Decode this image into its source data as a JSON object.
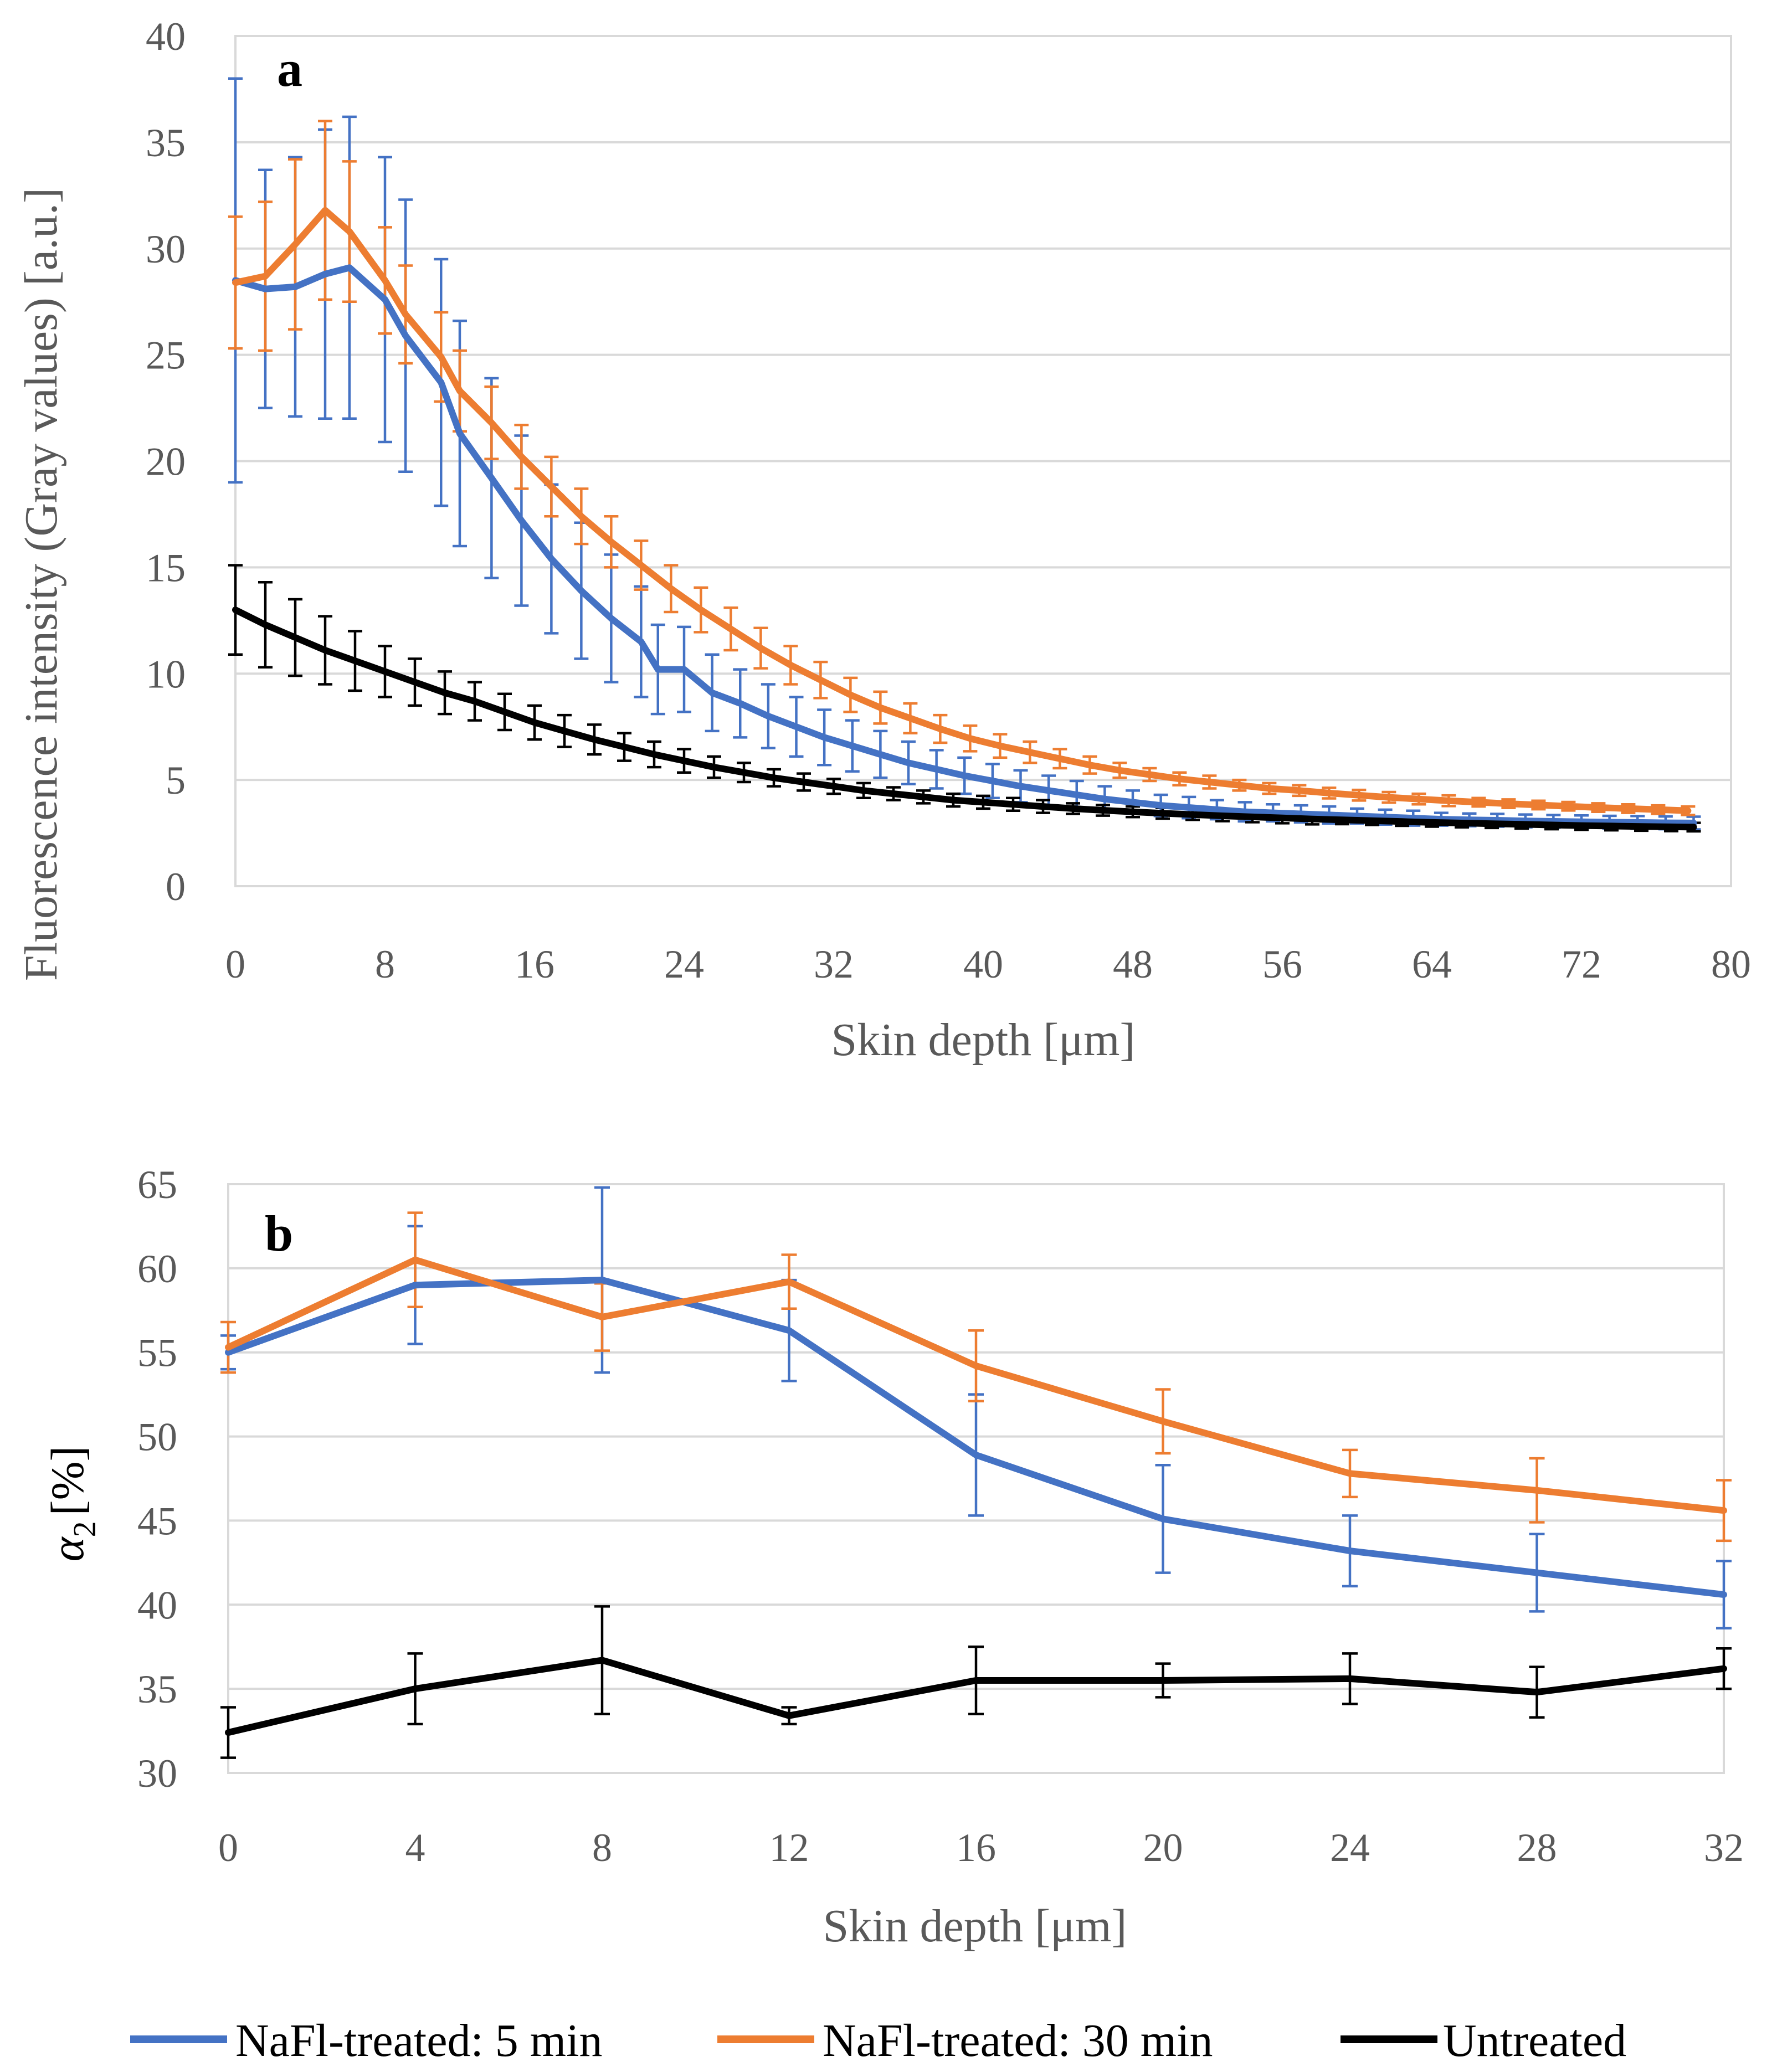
{
  "chart_data": [
    {
      "panel": "a",
      "type": "line",
      "xlabel": "Skin depth [μm]",
      "ylabel": "Fluorescence intensity (Gray values) [a.u.]",
      "xlim": [
        0,
        80
      ],
      "ylim": [
        0,
        40
      ],
      "xticks": [
        0,
        8,
        16,
        24,
        32,
        40,
        48,
        56,
        64,
        72,
        80
      ],
      "yticks": [
        0,
        5,
        10,
        15,
        20,
        25,
        30,
        35,
        40
      ],
      "grid": true,
      "series": [
        {
          "name": "NaFl-treated: 5 min",
          "color": "#4472c4",
          "x": [
            0,
            1.6,
            3.2,
            4.8,
            6.1,
            8,
            9.1,
            11,
            12,
            13.7,
            15.3,
            16.9,
            18.5,
            20.1,
            21.7,
            22.6,
            24,
            25.5,
            27,
            28.5,
            30,
            31.5,
            33,
            34.5,
            36,
            37.5,
            39,
            40.5,
            42,
            43.5,
            45,
            46.5,
            48,
            49.5,
            51,
            52.5,
            54,
            55.5,
            57,
            58.5,
            60,
            61.5,
            63,
            64.5,
            66,
            67.5,
            69,
            70.5,
            72,
            73.5,
            75,
            76.5,
            78
          ],
          "y": [
            28.5,
            28.1,
            28.2,
            28.8,
            29.1,
            27.6,
            25.9,
            23.7,
            21.3,
            19.2,
            17.2,
            15.4,
            13.9,
            12.6,
            11.5,
            10.2,
            10.2,
            9.1,
            8.6,
            8.0,
            7.5,
            7.0,
            6.6,
            6.2,
            5.8,
            5.5,
            5.2,
            4.95,
            4.7,
            4.5,
            4.3,
            4.1,
            3.95,
            3.8,
            3.7,
            3.6,
            3.5,
            3.45,
            3.4,
            3.35,
            3.3,
            3.25,
            3.2,
            3.15,
            3.12,
            3.1,
            3.07,
            3.05,
            3.03,
            3.01,
            3.0,
            2.98,
            2.97
          ],
          "err": [
            9.5,
            5.6,
            6.1,
            6.8,
            7.1,
            6.7,
            6.4,
            5.8,
            5.3,
            4.7,
            4.0,
            3.5,
            3.2,
            3.0,
            2.6,
            2.1,
            2.0,
            1.8,
            1.6,
            1.5,
            1.4,
            1.3,
            1.2,
            1.1,
            1.0,
            0.9,
            0.85,
            0.8,
            0.75,
            0.7,
            0.65,
            0.6,
            0.55,
            0.5,
            0.5,
            0.45,
            0.45,
            0.4,
            0.4,
            0.4,
            0.35,
            0.35,
            0.35,
            0.3,
            0.3,
            0.3,
            0.3,
            0.3,
            0.3,
            0.3,
            0.3,
            0.3,
            0.3
          ]
        },
        {
          "name": "NaFl-treated: 30 min",
          "color": "#ed7d31",
          "x": [
            0,
            1.6,
            3.2,
            4.8,
            6.1,
            8,
            9.1,
            11,
            12,
            13.7,
            15.3,
            16.9,
            18.5,
            20.1,
            21.7,
            23.3,
            24.9,
            26.5,
            28.1,
            29.7,
            31.3,
            32.9,
            34.5,
            36.1,
            37.7,
            39.3,
            40.9,
            42.5,
            44.1,
            45.7,
            47.3,
            48.9,
            50.5,
            52.1,
            53.7,
            55.3,
            56.9,
            58.5,
            60.1,
            61.7,
            63.3,
            64.9,
            66.5,
            68.1,
            69.7,
            71.3,
            72.9,
            74.5,
            76.1,
            77.7
          ],
          "y": [
            28.4,
            28.7,
            30.2,
            31.8,
            30.8,
            28.5,
            26.9,
            24.9,
            23.3,
            21.8,
            20.2,
            18.8,
            17.4,
            16.2,
            15.1,
            14.0,
            13.0,
            12.1,
            11.2,
            10.4,
            9.7,
            9.0,
            8.4,
            7.9,
            7.4,
            6.95,
            6.6,
            6.3,
            6.0,
            5.7,
            5.45,
            5.25,
            5.05,
            4.9,
            4.75,
            4.6,
            4.5,
            4.38,
            4.28,
            4.18,
            4.1,
            4.02,
            3.95,
            3.88,
            3.82,
            3.76,
            3.7,
            3.65,
            3.6,
            3.55
          ],
          "err": [
            3.1,
            3.5,
            4.0,
            4.2,
            3.3,
            2.5,
            2.3,
            2.1,
            1.9,
            1.7,
            1.5,
            1.4,
            1.3,
            1.2,
            1.15,
            1.1,
            1.05,
            1.0,
            0.95,
            0.9,
            0.85,
            0.8,
            0.75,
            0.7,
            0.65,
            0.6,
            0.55,
            0.5,
            0.45,
            0.4,
            0.35,
            0.3,
            0.3,
            0.3,
            0.25,
            0.25,
            0.25,
            0.25,
            0.25,
            0.25,
            0.25,
            0.25,
            0.2,
            0.2,
            0.2,
            0.2,
            0.2,
            0.2,
            0.2,
            0.2
          ]
        },
        {
          "name": "Untreated",
          "color": "#000000",
          "x": [
            0,
            1.6,
            3.2,
            4.8,
            6.4,
            8,
            9.6,
            11.2,
            12.8,
            14.4,
            16,
            17.6,
            19.2,
            20.8,
            22.4,
            24,
            25.6,
            27.2,
            28.8,
            30.4,
            32,
            33.6,
            35.2,
            36.8,
            38.4,
            40,
            41.6,
            43.2,
            44.8,
            46.4,
            48,
            49.6,
            51.2,
            52.8,
            54.4,
            56,
            57.6,
            59.2,
            60.8,
            62.4,
            64,
            65.6,
            67.2,
            68.8,
            70.4,
            72,
            73.6,
            75.2,
            76.8,
            78
          ],
          "y": [
            13.0,
            12.3,
            11.7,
            11.1,
            10.6,
            10.1,
            9.6,
            9.1,
            8.7,
            8.2,
            7.7,
            7.3,
            6.9,
            6.55,
            6.2,
            5.9,
            5.6,
            5.35,
            5.1,
            4.9,
            4.7,
            4.5,
            4.35,
            4.2,
            4.05,
            3.95,
            3.85,
            3.75,
            3.65,
            3.57,
            3.5,
            3.43,
            3.37,
            3.31,
            3.26,
            3.21,
            3.16,
            3.12,
            3.08,
            3.04,
            3.0,
            2.97,
            2.94,
            2.91,
            2.88,
            2.85,
            2.83,
            2.81,
            2.79,
            2.78
          ],
          "err": [
            2.1,
            2.0,
            1.8,
            1.6,
            1.4,
            1.2,
            1.1,
            1.0,
            0.9,
            0.85,
            0.8,
            0.75,
            0.7,
            0.65,
            0.6,
            0.55,
            0.5,
            0.45,
            0.4,
            0.4,
            0.35,
            0.35,
            0.3,
            0.3,
            0.3,
            0.3,
            0.3,
            0.3,
            0.25,
            0.25,
            0.25,
            0.25,
            0.25,
            0.25,
            0.25,
            0.25,
            0.25,
            0.2,
            0.2,
            0.2,
            0.2,
            0.2,
            0.2,
            0.2,
            0.2,
            0.2,
            0.2,
            0.2,
            0.2,
            0.2
          ]
        }
      ]
    },
    {
      "panel": "b",
      "type": "line",
      "xlabel": "Skin depth [μm]",
      "ylabel_symbol": "α",
      "ylabel_subscript": "2",
      "ylabel_unit": "[%]",
      "xlim": [
        0,
        32
      ],
      "ylim": [
        30,
        65
      ],
      "xticks": [
        0,
        4,
        8,
        12,
        16,
        20,
        24,
        28,
        32
      ],
      "yticks": [
        30,
        35,
        40,
        45,
        50,
        55,
        60,
        65
      ],
      "grid": true,
      "series": [
        {
          "name": "NaFl-treated: 5 min",
          "color": "#4472c4",
          "x": [
            0,
            4,
            8,
            12,
            16,
            20,
            24,
            28,
            32
          ],
          "y": [
            55.0,
            59.0,
            59.3,
            56.3,
            48.9,
            45.1,
            43.2,
            41.9,
            40.6
          ],
          "err": [
            1.0,
            3.5,
            5.5,
            3.0,
            3.6,
            3.2,
            2.1,
            2.3,
            2.0
          ]
        },
        {
          "name": "NaFl-treated: 30 min",
          "color": "#ed7d31",
          "x": [
            0,
            4,
            8,
            12,
            16,
            20,
            24,
            28,
            32
          ],
          "y": [
            55.3,
            60.5,
            57.1,
            59.2,
            54.2,
            50.9,
            47.8,
            46.8,
            45.6
          ],
          "err": [
            1.5,
            2.8,
            2.0,
            1.6,
            2.1,
            1.9,
            1.4,
            1.9,
            1.8
          ]
        },
        {
          "name": "Untreated",
          "color": "#000000",
          "x": [
            0,
            4,
            8,
            12,
            16,
            20,
            24,
            28,
            32
          ],
          "y": [
            32.4,
            35.0,
            36.7,
            33.4,
            35.5,
            35.5,
            35.6,
            34.8,
            36.2
          ],
          "err": [
            1.5,
            2.1,
            3.2,
            0.5,
            2.0,
            1.0,
            1.5,
            1.5,
            1.2
          ]
        }
      ]
    }
  ],
  "panels": {
    "a": {
      "letter": "a"
    },
    "b": {
      "letter": "b"
    }
  },
  "legend": {
    "position": "bottom",
    "items": [
      {
        "label": "NaFl-treated: 5 min",
        "color": "#4472c4"
      },
      {
        "label": "NaFl-treated: 30 min",
        "color": "#ed7d31"
      },
      {
        "label": "Untreated",
        "color": "#000000"
      }
    ]
  }
}
